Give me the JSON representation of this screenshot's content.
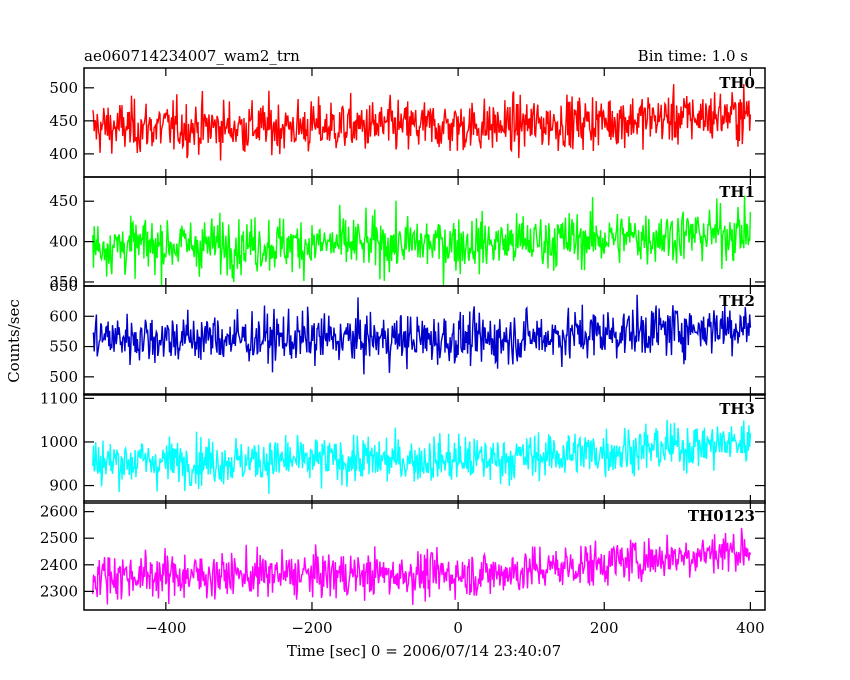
{
  "chart_data": {
    "type": "line",
    "title_left": "ae060714234007_wam2_trn",
    "title_right": "Bin time: 1.0 s",
    "xlabel": "Time [sec] 0 = 2006/07/14 23:40:07",
    "ylabel": "Counts/sec",
    "xlim": [
      -512,
      420
    ],
    "x_ticks": [
      -400,
      -200,
      0,
      200,
      400
    ],
    "x_range": [
      -500,
      400
    ],
    "bin_time": 1.0,
    "grid": false,
    "panels": [
      {
        "name": "TH0",
        "color": "#ff0000",
        "ylim": [
          365,
          530
        ],
        "y_ticks": [
          400,
          450,
          500
        ],
        "trend": [
          440,
          442,
          460
        ],
        "noise": 28
      },
      {
        "name": "TH1",
        "color": "#00ff00",
        "ylim": [
          345,
          480
        ],
        "y_ticks": [
          350,
          400,
          450
        ],
        "trend": [
          395,
          398,
          412
        ],
        "noise": 24
      },
      {
        "name": "TH2",
        "color": "#0000cc",
        "ylim": [
          470,
          650
        ],
        "y_ticks": [
          500,
          550,
          600,
          650
        ],
        "trend": [
          565,
          562,
          585
        ],
        "noise": 30
      },
      {
        "name": "TH3",
        "color": "#00ffff",
        "ylim": [
          860,
          1110
        ],
        "y_ticks": [
          900,
          1000,
          1100
        ],
        "trend": [
          955,
          960,
          1000
        ],
        "noise": 38
      },
      {
        "name": "TH0123",
        "color": "#ff00ff",
        "ylim": [
          2230,
          2640
        ],
        "y_ticks": [
          2300,
          2400,
          2500,
          2600
        ],
        "trend": [
          2360,
          2365,
          2460
        ],
        "noise": 60
      }
    ]
  }
}
